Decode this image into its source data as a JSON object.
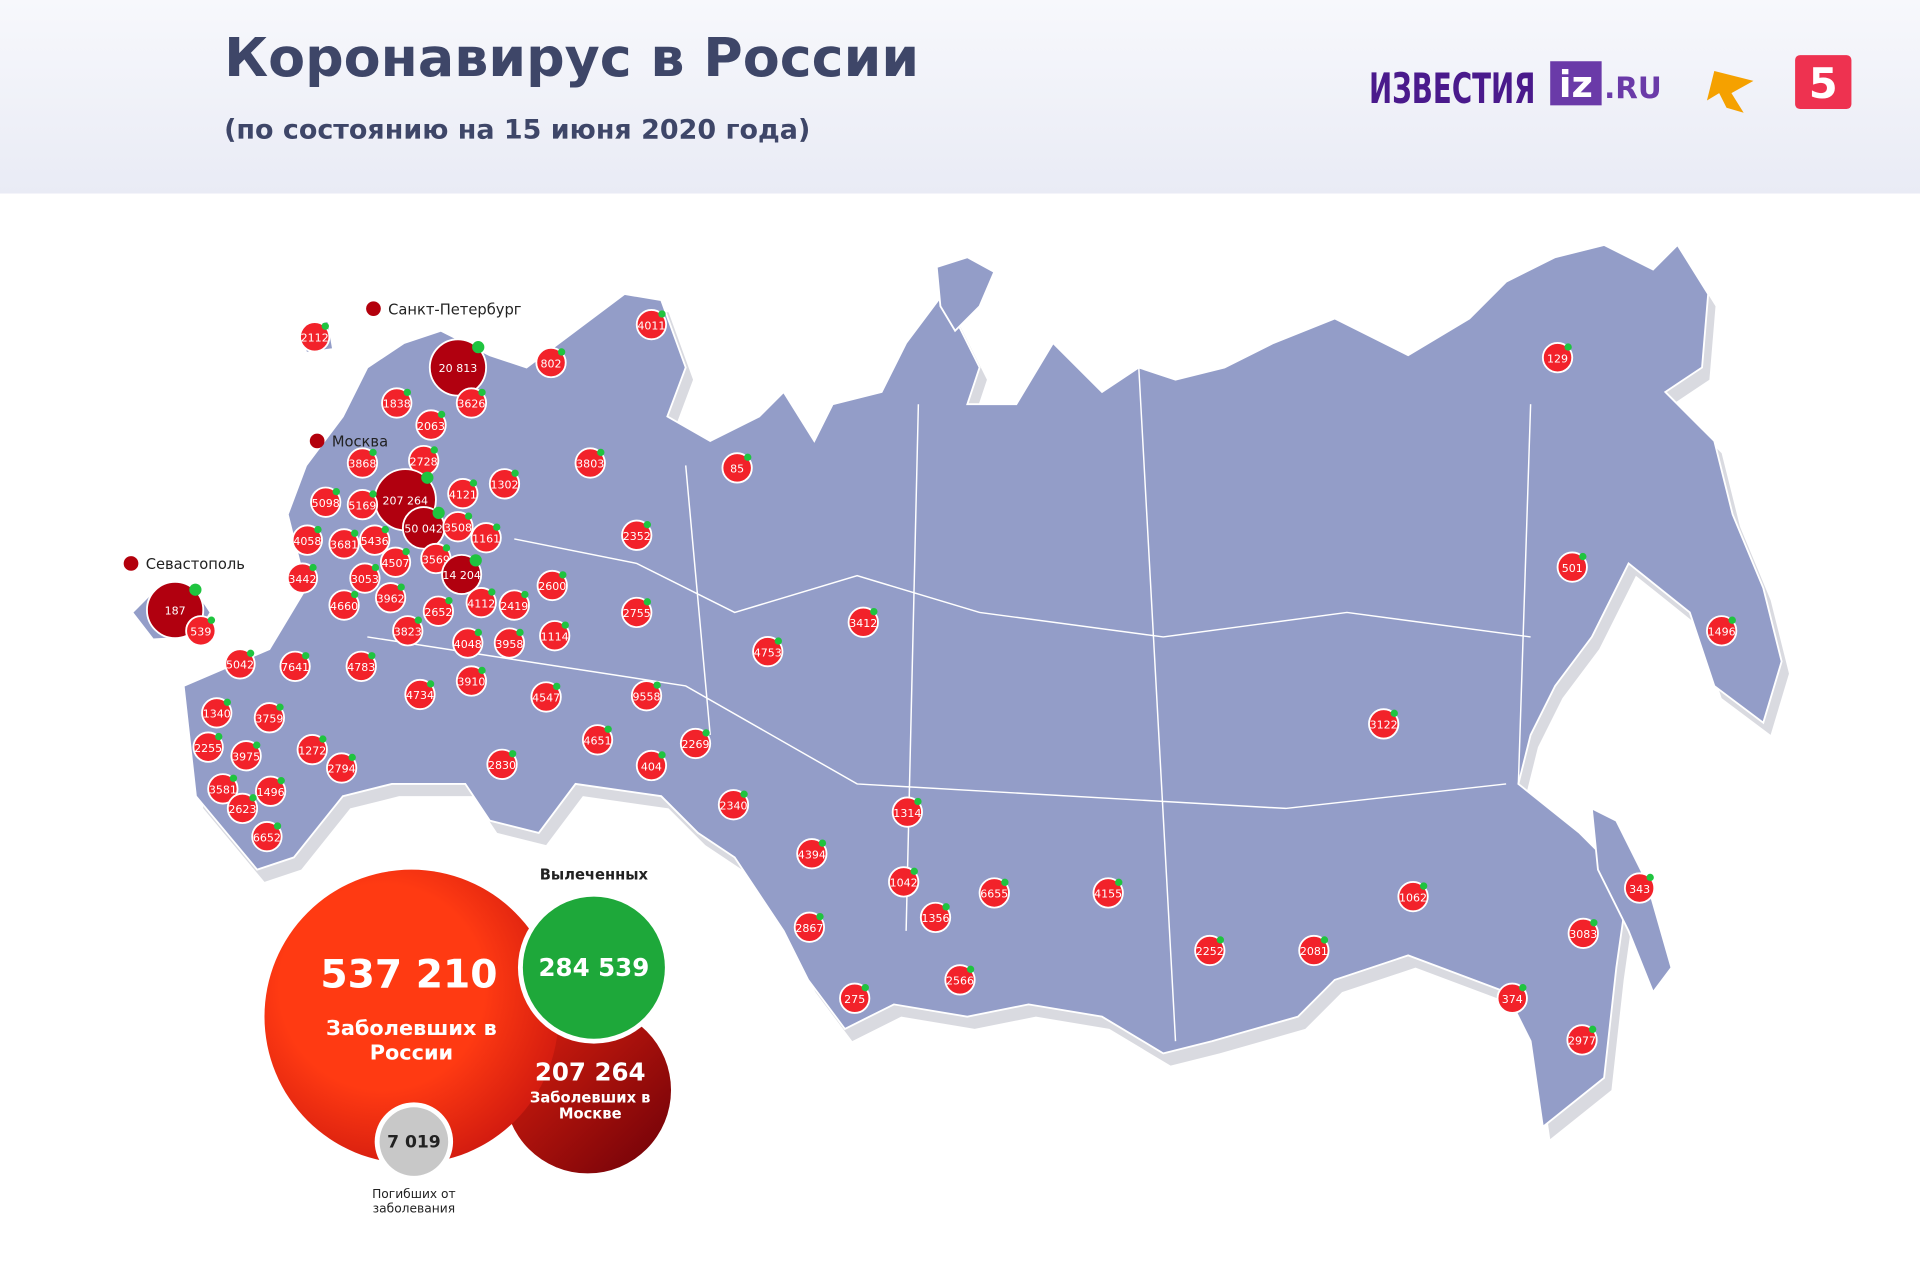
{
  "header": {
    "title": "Коронавирус в России",
    "subtitle": "(по состоянию на 15 июня 2020 года)"
  },
  "logos": {
    "izvestia": "ИЗВЕСТИЯ",
    "iz": "iz",
    "ru": ".RU",
    "five": "5"
  },
  "cities": [
    "Санкт-Петербург",
    "Москва",
    "Севастополь"
  ],
  "regions": [
    "2112",
    "20 813",
    "3626",
    "802",
    "4011",
    "1838",
    "2063",
    "2728",
    "3868",
    "207 264",
    "4121",
    "1302",
    "3803",
    "85",
    "5098",
    "5169",
    "50 042",
    "3508",
    "1161",
    "2352",
    "4058",
    "3681",
    "5436",
    "4507",
    "3569",
    "14 204",
    "2600",
    "3442",
    "3053",
    "187",
    "539",
    "4660",
    "3962",
    "2652",
    "4112",
    "2419",
    "2755",
    "3823",
    "4048",
    "3958",
    "1114",
    "3412",
    "4753",
    "5042",
    "7641",
    "4783",
    "3910",
    "4734",
    "4547",
    "9558",
    "1340",
    "3759",
    "2255",
    "3975",
    "1272",
    "2794",
    "4651",
    "2269",
    "404",
    "2830",
    "3581",
    "1496",
    "2623",
    "6652",
    "2340",
    "1314",
    "4394",
    "1042",
    "6655",
    "4155",
    "2867",
    "1356",
    "275",
    "2566",
    "2252",
    "2081",
    "1062",
    "3122",
    "129",
    "501",
    "1496",
    "343",
    "3083",
    "374",
    "2977"
  ],
  "summary": {
    "cases": "537 210",
    "cases_label": "Заболевших в России",
    "recovered_label": "Вылеченных",
    "recovered": "284 539",
    "moscow": "207 264",
    "moscow_label": "Заболевших в Москве",
    "deaths": "7 019",
    "deaths_label": "Погибших от заболевания"
  }
}
